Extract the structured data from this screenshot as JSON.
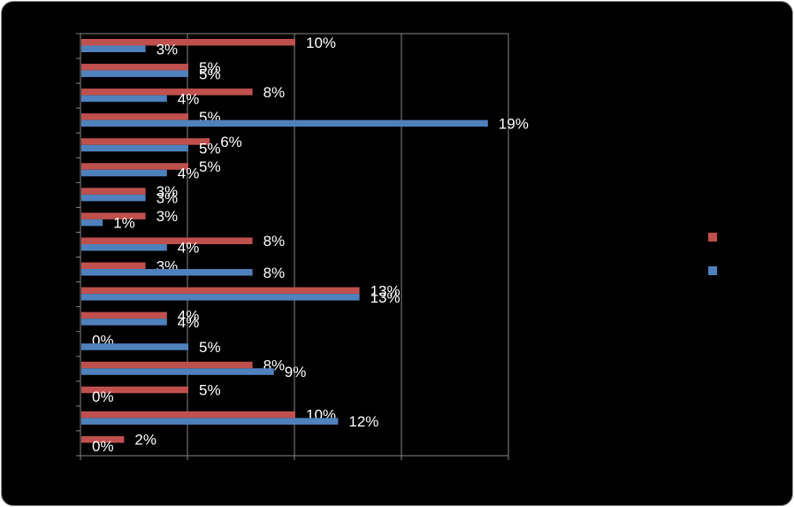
{
  "chart_data": {
    "type": "bar",
    "orientation": "horizontal",
    "title": "",
    "xlabel": "",
    "ylabel": "",
    "xlim": [
      0,
      20
    ],
    "grid": true,
    "legend_position": "right",
    "categories": [
      "",
      "",
      "",
      "",
      "",
      "",
      "",
      "",
      "",
      "",
      "",
      "",
      "",
      "",
      "",
      "",
      ""
    ],
    "series": [
      {
        "color": "#c0504d",
        "values": [
          10,
          5,
          8,
          5,
          6,
          5,
          3,
          3,
          8,
          3,
          13,
          4,
          0,
          8,
          5,
          10,
          2
        ],
        "labels": [
          "10%",
          "5%",
          "8%",
          "5%",
          "6%",
          "5%",
          "3%",
          "3%",
          "8%",
          "3%",
          "13%",
          "4%",
          "0%",
          "8%",
          "5%",
          "10%",
          "2%"
        ]
      },
      {
        "color": "#4f81bd",
        "values": [
          3,
          5,
          4,
          19,
          5,
          4,
          3,
          1,
          4,
          8,
          13,
          4,
          5,
          9,
          0,
          12,
          0
        ],
        "labels": [
          "3%",
          "5%",
          "4%",
          "19%",
          "5%",
          "4%",
          "3%",
          "1%",
          "4%",
          "8%",
          "13%",
          "4%",
          "5%",
          "9%",
          "0%",
          "12%",
          "0%"
        ]
      }
    ]
  }
}
